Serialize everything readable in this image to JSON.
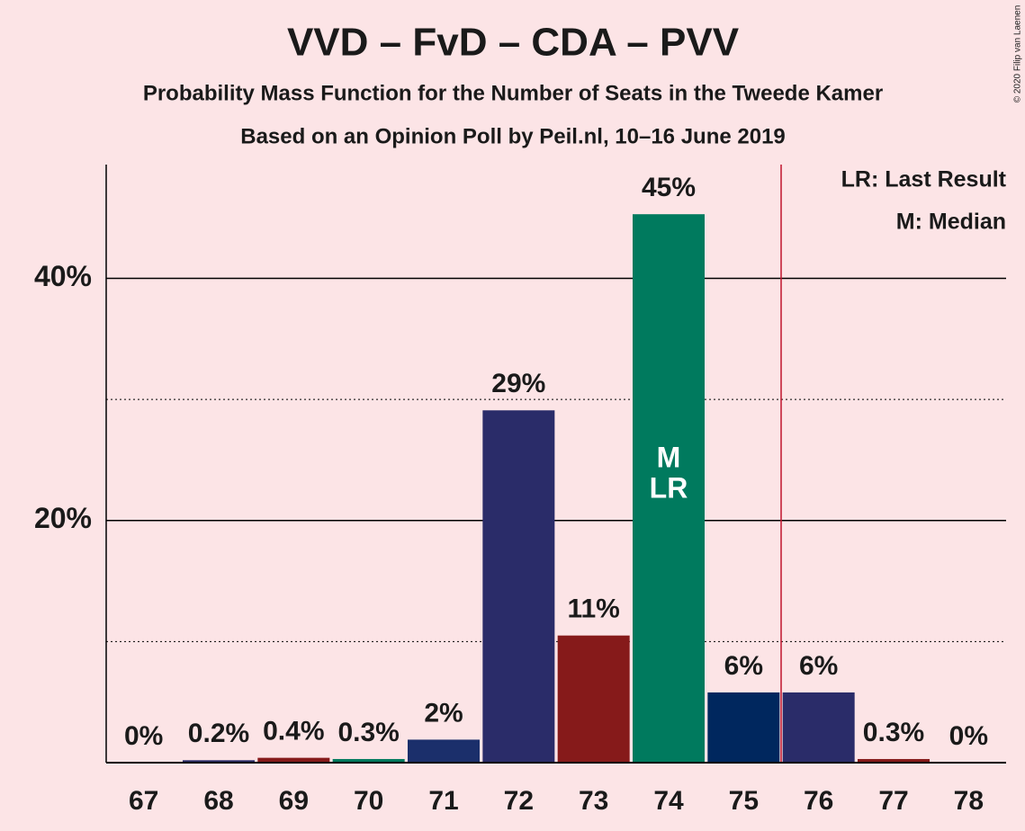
{
  "chart_data": {
    "type": "bar",
    "title": "VVD – FvD – CDA – PVV",
    "subtitle": "Probability Mass Function for the Number of Seats in the Tweede Kamer",
    "subtitle2": "Based on an Opinion Poll by Peil.nl, 10–16 June 2019",
    "copyright": "© 2020 Filip van Laenen",
    "categories": [
      67,
      68,
      69,
      70,
      71,
      72,
      73,
      74,
      75,
      76,
      77,
      78
    ],
    "values": [
      0,
      0.2,
      0.4,
      0.3,
      1.9,
      29.1,
      10.5,
      45.3,
      5.8,
      5.8,
      0.3,
      0
    ],
    "value_labels": [
      "0%",
      "0.2%",
      "0.4%",
      "0.3%",
      "2%",
      "29%",
      "11%",
      "45%",
      "6%",
      "6%",
      "0.3%",
      "0%"
    ],
    "colors": [
      "#2a2c69",
      "#2a2c69",
      "#861a1a",
      "#007a5e",
      "#1b2f6b",
      "#2a2c69",
      "#861a1a",
      "#007a5e",
      "#00275e",
      "#2a2c69",
      "#861a1a",
      "#007a5e"
    ],
    "ylim": [
      0,
      49.4
    ],
    "yticks": [
      {
        "value": 20,
        "label": "20%"
      },
      {
        "value": 40,
        "label": "40%"
      }
    ],
    "yminor": [
      10,
      30
    ],
    "grid": true,
    "majority": 76,
    "majority_color": "#c0152d",
    "median": 74,
    "median_label": "M",
    "last_result": 74,
    "last_result_label": "LR",
    "legend": [
      "LR: Last Result",
      "M: Median"
    ]
  }
}
